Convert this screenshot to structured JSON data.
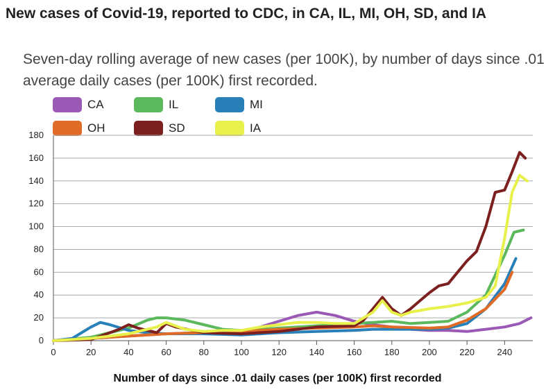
{
  "chart_data": {
    "type": "line",
    "title": "New cases of Covid-19, reported to CDC, in CA, IL, MI, OH, SD, and IA",
    "subtitle": "Seven-day rolling average of new cases (per 100K), by number of days since .01 average daily cases (per 100K) first recorded.",
    "xlabel": "Number of days since .01 daily cases (per 100K) first recorded",
    "ylabel": "",
    "xlim": [
      0,
      255
    ],
    "ylim": [
      0,
      180
    ],
    "xticks": [
      0,
      20,
      40,
      60,
      80,
      100,
      120,
      140,
      160,
      180,
      200,
      220,
      240
    ],
    "yticks": [
      0,
      20,
      40,
      60,
      80,
      100,
      120,
      140,
      160,
      180
    ],
    "grid": "horizontal",
    "legend_position": "top-left",
    "series": [
      {
        "name": "CA",
        "color": "#9b59b6",
        "points": [
          [
            0,
            0
          ],
          [
            20,
            2
          ],
          [
            40,
            4
          ],
          [
            60,
            6
          ],
          [
            80,
            7
          ],
          [
            90,
            6
          ],
          [
            100,
            8
          ],
          [
            110,
            12
          ],
          [
            120,
            17
          ],
          [
            130,
            22
          ],
          [
            140,
            25
          ],
          [
            150,
            22
          ],
          [
            160,
            17
          ],
          [
            170,
            14
          ],
          [
            180,
            12
          ],
          [
            190,
            10
          ],
          [
            200,
            9
          ],
          [
            210,
            9
          ],
          [
            220,
            8
          ],
          [
            230,
            10
          ],
          [
            240,
            12
          ],
          [
            248,
            15
          ],
          [
            254,
            20
          ]
        ]
      },
      {
        "name": "IL",
        "color": "#5cb85c",
        "points": [
          [
            0,
            0
          ],
          [
            20,
            3
          ],
          [
            30,
            7
          ],
          [
            40,
            11
          ],
          [
            50,
            18
          ],
          [
            55,
            20
          ],
          [
            60,
            20
          ],
          [
            70,
            18
          ],
          [
            80,
            14
          ],
          [
            90,
            10
          ],
          [
            100,
            9
          ],
          [
            110,
            10
          ],
          [
            120,
            11
          ],
          [
            130,
            12
          ],
          [
            140,
            13
          ],
          [
            150,
            14
          ],
          [
            160,
            15
          ],
          [
            170,
            16
          ],
          [
            180,
            17
          ],
          [
            190,
            15
          ],
          [
            200,
            16
          ],
          [
            210,
            17
          ],
          [
            220,
            25
          ],
          [
            230,
            40
          ],
          [
            240,
            75
          ],
          [
            245,
            95
          ],
          [
            250,
            97
          ]
        ]
      },
      {
        "name": "MI",
        "color": "#2980b9",
        "points": [
          [
            0,
            0
          ],
          [
            10,
            2
          ],
          [
            20,
            12
          ],
          [
            25,
            16
          ],
          [
            30,
            14
          ],
          [
            40,
            9
          ],
          [
            50,
            7
          ],
          [
            60,
            6
          ],
          [
            80,
            6
          ],
          [
            100,
            5
          ],
          [
            120,
            7
          ],
          [
            140,
            8
          ],
          [
            160,
            9
          ],
          [
            170,
            10
          ],
          [
            180,
            10
          ],
          [
            200,
            10
          ],
          [
            210,
            11
          ],
          [
            220,
            15
          ],
          [
            230,
            28
          ],
          [
            240,
            50
          ],
          [
            246,
            72
          ]
        ]
      },
      {
        "name": "OH",
        "color": "#e06b26",
        "points": [
          [
            0,
            0
          ],
          [
            20,
            2
          ],
          [
            40,
            4
          ],
          [
            60,
            6
          ],
          [
            80,
            7
          ],
          [
            100,
            8
          ],
          [
            120,
            10
          ],
          [
            140,
            11
          ],
          [
            160,
            12
          ],
          [
            170,
            13
          ],
          [
            180,
            12
          ],
          [
            200,
            11
          ],
          [
            210,
            12
          ],
          [
            220,
            18
          ],
          [
            230,
            28
          ],
          [
            240,
            45
          ],
          [
            244,
            60
          ]
        ]
      },
      {
        "name": "SD",
        "color": "#7b1f1f",
        "points": [
          [
            0,
            0
          ],
          [
            20,
            1
          ],
          [
            35,
            10
          ],
          [
            40,
            14
          ],
          [
            45,
            11
          ],
          [
            55,
            7
          ],
          [
            60,
            15
          ],
          [
            65,
            12
          ],
          [
            80,
            7
          ],
          [
            100,
            6
          ],
          [
            120,
            8
          ],
          [
            140,
            12
          ],
          [
            160,
            13
          ],
          [
            165,
            18
          ],
          [
            175,
            38
          ],
          [
            180,
            28
          ],
          [
            185,
            22
          ],
          [
            190,
            28
          ],
          [
            195,
            35
          ],
          [
            200,
            42
          ],
          [
            205,
            48
          ],
          [
            210,
            50
          ],
          [
            215,
            60
          ],
          [
            220,
            70
          ],
          [
            225,
            78
          ],
          [
            230,
            100
          ],
          [
            235,
            130
          ],
          [
            240,
            132
          ],
          [
            244,
            148
          ],
          [
            248,
            165
          ],
          [
            251,
            160
          ]
        ]
      },
      {
        "name": "IA",
        "color": "#e8f04c",
        "points": [
          [
            0,
            0
          ],
          [
            20,
            2
          ],
          [
            40,
            6
          ],
          [
            55,
            12
          ],
          [
            60,
            16
          ],
          [
            70,
            10
          ],
          [
            80,
            8
          ],
          [
            90,
            9
          ],
          [
            100,
            9
          ],
          [
            110,
            12
          ],
          [
            120,
            14
          ],
          [
            130,
            16
          ],
          [
            140,
            16
          ],
          [
            150,
            15
          ],
          [
            160,
            15
          ],
          [
            170,
            25
          ],
          [
            175,
            35
          ],
          [
            180,
            25
          ],
          [
            185,
            22
          ],
          [
            190,
            25
          ],
          [
            200,
            28
          ],
          [
            210,
            30
          ],
          [
            220,
            33
          ],
          [
            230,
            38
          ],
          [
            235,
            48
          ],
          [
            240,
            90
          ],
          [
            244,
            130
          ],
          [
            248,
            145
          ],
          [
            252,
            140
          ]
        ]
      }
    ]
  }
}
